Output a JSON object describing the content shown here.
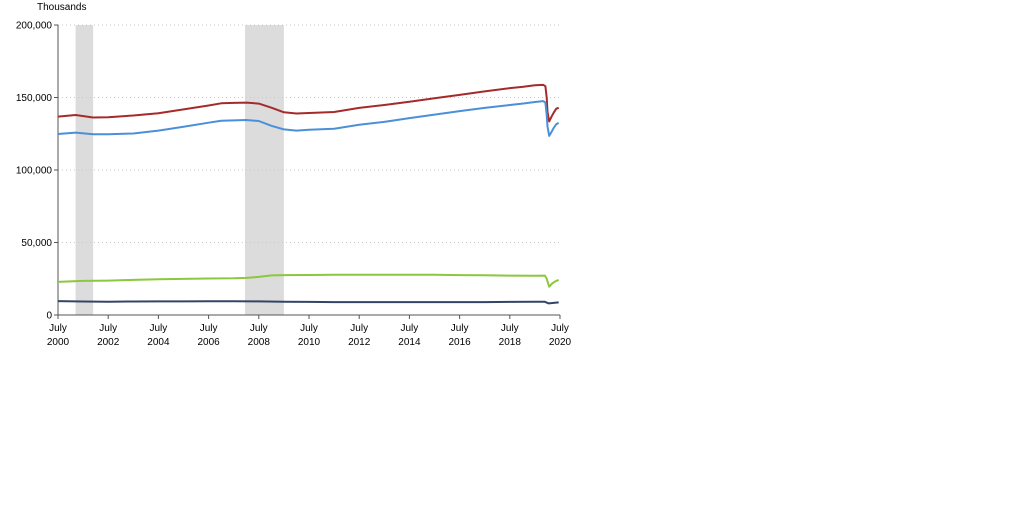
{
  "chart_data": {
    "type": "line",
    "ylabel": "Thousands",
    "ylim": [
      0,
      200000
    ],
    "y_ticks": [
      {
        "value": 0,
        "label": "0"
      },
      {
        "value": 50000,
        "label": "50,000"
      },
      {
        "value": 100000,
        "label": "100,000"
      },
      {
        "value": 150000,
        "label": "150,000"
      },
      {
        "value": 200000,
        "label": "200,000"
      }
    ],
    "xlim": [
      2000.5,
      2020.5
    ],
    "x_ticks": [
      {
        "value": 2000.5,
        "month": "July",
        "year": "2000"
      },
      {
        "value": 2002.5,
        "month": "July",
        "year": "2002"
      },
      {
        "value": 2004.5,
        "month": "July",
        "year": "2004"
      },
      {
        "value": 2006.5,
        "month": "July",
        "year": "2006"
      },
      {
        "value": 2008.5,
        "month": "July",
        "year": "2008"
      },
      {
        "value": 2010.5,
        "month": "July",
        "year": "2010"
      },
      {
        "value": 2012.5,
        "month": "July",
        "year": "2012"
      },
      {
        "value": 2014.5,
        "month": "July",
        "year": "2014"
      },
      {
        "value": 2016.5,
        "month": "July",
        "year": "2016"
      },
      {
        "value": 2018.5,
        "month": "July",
        "year": "2018"
      },
      {
        "value": 2020.5,
        "month": "July",
        "year": "2020"
      }
    ],
    "grid": {
      "horizontal": true,
      "style": "dotted"
    },
    "recessions": [
      [
        2001.2,
        2001.9
      ],
      [
        2007.95,
        2009.5
      ]
    ],
    "series": [
      {
        "color": "#a52a2a",
        "points": [
          [
            2000.5,
            136800
          ],
          [
            2001.2,
            137900
          ],
          [
            2001.9,
            136200
          ],
          [
            2002.5,
            136400
          ],
          [
            2003.5,
            137600
          ],
          [
            2004.5,
            139200
          ],
          [
            2005.5,
            141800
          ],
          [
            2006.5,
            144500
          ],
          [
            2007.0,
            146000
          ],
          [
            2007.5,
            146300
          ],
          [
            2008.0,
            146500
          ],
          [
            2008.5,
            145800
          ],
          [
            2009.0,
            143000
          ],
          [
            2009.5,
            139800
          ],
          [
            2010.0,
            139000
          ],
          [
            2010.5,
            139300
          ],
          [
            2011.5,
            140000
          ],
          [
            2012.5,
            142800
          ],
          [
            2013.5,
            144800
          ],
          [
            2014.5,
            147000
          ],
          [
            2015.5,
            149500
          ],
          [
            2016.5,
            151800
          ],
          [
            2017.5,
            154200
          ],
          [
            2018.5,
            156500
          ],
          [
            2019.0,
            157300
          ],
          [
            2019.5,
            158500
          ],
          [
            2019.83,
            158700
          ],
          [
            2019.92,
            157800
          ],
          [
            2019.97,
            150000
          ],
          [
            2020.0,
            140000
          ],
          [
            2020.07,
            133500
          ],
          [
            2020.17,
            137000
          ],
          [
            2020.25,
            139500
          ],
          [
            2020.35,
            142200
          ],
          [
            2020.45,
            143000
          ]
        ]
      },
      {
        "color": "#4a90d9",
        "points": [
          [
            2000.5,
            124800
          ],
          [
            2001.2,
            125800
          ],
          [
            2001.9,
            124600
          ],
          [
            2002.5,
            124700
          ],
          [
            2003.5,
            125200
          ],
          [
            2004.5,
            127200
          ],
          [
            2005.5,
            129800
          ],
          [
            2006.5,
            132600
          ],
          [
            2007.0,
            134000
          ],
          [
            2007.5,
            134200
          ],
          [
            2008.0,
            134500
          ],
          [
            2008.5,
            133800
          ],
          [
            2009.0,
            130500
          ],
          [
            2009.5,
            128000
          ],
          [
            2010.0,
            127200
          ],
          [
            2010.5,
            127800
          ],
          [
            2011.5,
            128500
          ],
          [
            2012.5,
            131200
          ],
          [
            2013.5,
            133200
          ],
          [
            2014.5,
            135800
          ],
          [
            2015.5,
            138200
          ],
          [
            2016.5,
            140600
          ],
          [
            2017.5,
            142800
          ],
          [
            2018.5,
            144800
          ],
          [
            2019.0,
            145800
          ],
          [
            2019.5,
            146900
          ],
          [
            2019.83,
            147500
          ],
          [
            2019.92,
            146500
          ],
          [
            2019.97,
            138000
          ],
          [
            2020.0,
            130000
          ],
          [
            2020.07,
            123500
          ],
          [
            2020.17,
            126500
          ],
          [
            2020.25,
            129000
          ],
          [
            2020.35,
            131500
          ],
          [
            2020.45,
            132500
          ]
        ]
      },
      {
        "color": "#8dc63f",
        "points": [
          [
            2000.5,
            22800
          ],
          [
            2001.5,
            23500
          ],
          [
            2002.5,
            23700
          ],
          [
            2003.5,
            24200
          ],
          [
            2004.5,
            24700
          ],
          [
            2005.5,
            24900
          ],
          [
            2006.5,
            25200
          ],
          [
            2007.5,
            25300
          ],
          [
            2008.0,
            25600
          ],
          [
            2008.5,
            26300
          ],
          [
            2009.0,
            27300
          ],
          [
            2009.5,
            27500
          ],
          [
            2010.5,
            27600
          ],
          [
            2011.5,
            27700
          ],
          [
            2012.5,
            27800
          ],
          [
            2013.5,
            27800
          ],
          [
            2014.5,
            27800
          ],
          [
            2015.5,
            27700
          ],
          [
            2016.5,
            27500
          ],
          [
            2017.5,
            27400
          ],
          [
            2018.5,
            27200
          ],
          [
            2019.5,
            27100
          ],
          [
            2019.9,
            27200
          ],
          [
            2019.97,
            25000
          ],
          [
            2020.07,
            19500
          ],
          [
            2020.2,
            22000
          ],
          [
            2020.35,
            23500
          ],
          [
            2020.45,
            24200
          ]
        ]
      },
      {
        "color": "#334466",
        "points": [
          [
            2000.5,
            9600
          ],
          [
            2001.5,
            9300
          ],
          [
            2002.5,
            9200
          ],
          [
            2003.5,
            9300
          ],
          [
            2004.5,
            9400
          ],
          [
            2005.5,
            9400
          ],
          [
            2006.5,
            9500
          ],
          [
            2007.5,
            9500
          ],
          [
            2008.5,
            9400
          ],
          [
            2009.5,
            9100
          ],
          [
            2010.5,
            9000
          ],
          [
            2011.5,
            8900
          ],
          [
            2012.5,
            8900
          ],
          [
            2013.5,
            8900
          ],
          [
            2014.5,
            8900
          ],
          [
            2015.5,
            8900
          ],
          [
            2016.5,
            8900
          ],
          [
            2017.5,
            8900
          ],
          [
            2018.5,
            9000
          ],
          [
            2019.5,
            9100
          ],
          [
            2019.9,
            9100
          ],
          [
            2020.05,
            8000
          ],
          [
            2020.2,
            8300
          ],
          [
            2020.45,
            8700
          ]
        ]
      }
    ]
  }
}
